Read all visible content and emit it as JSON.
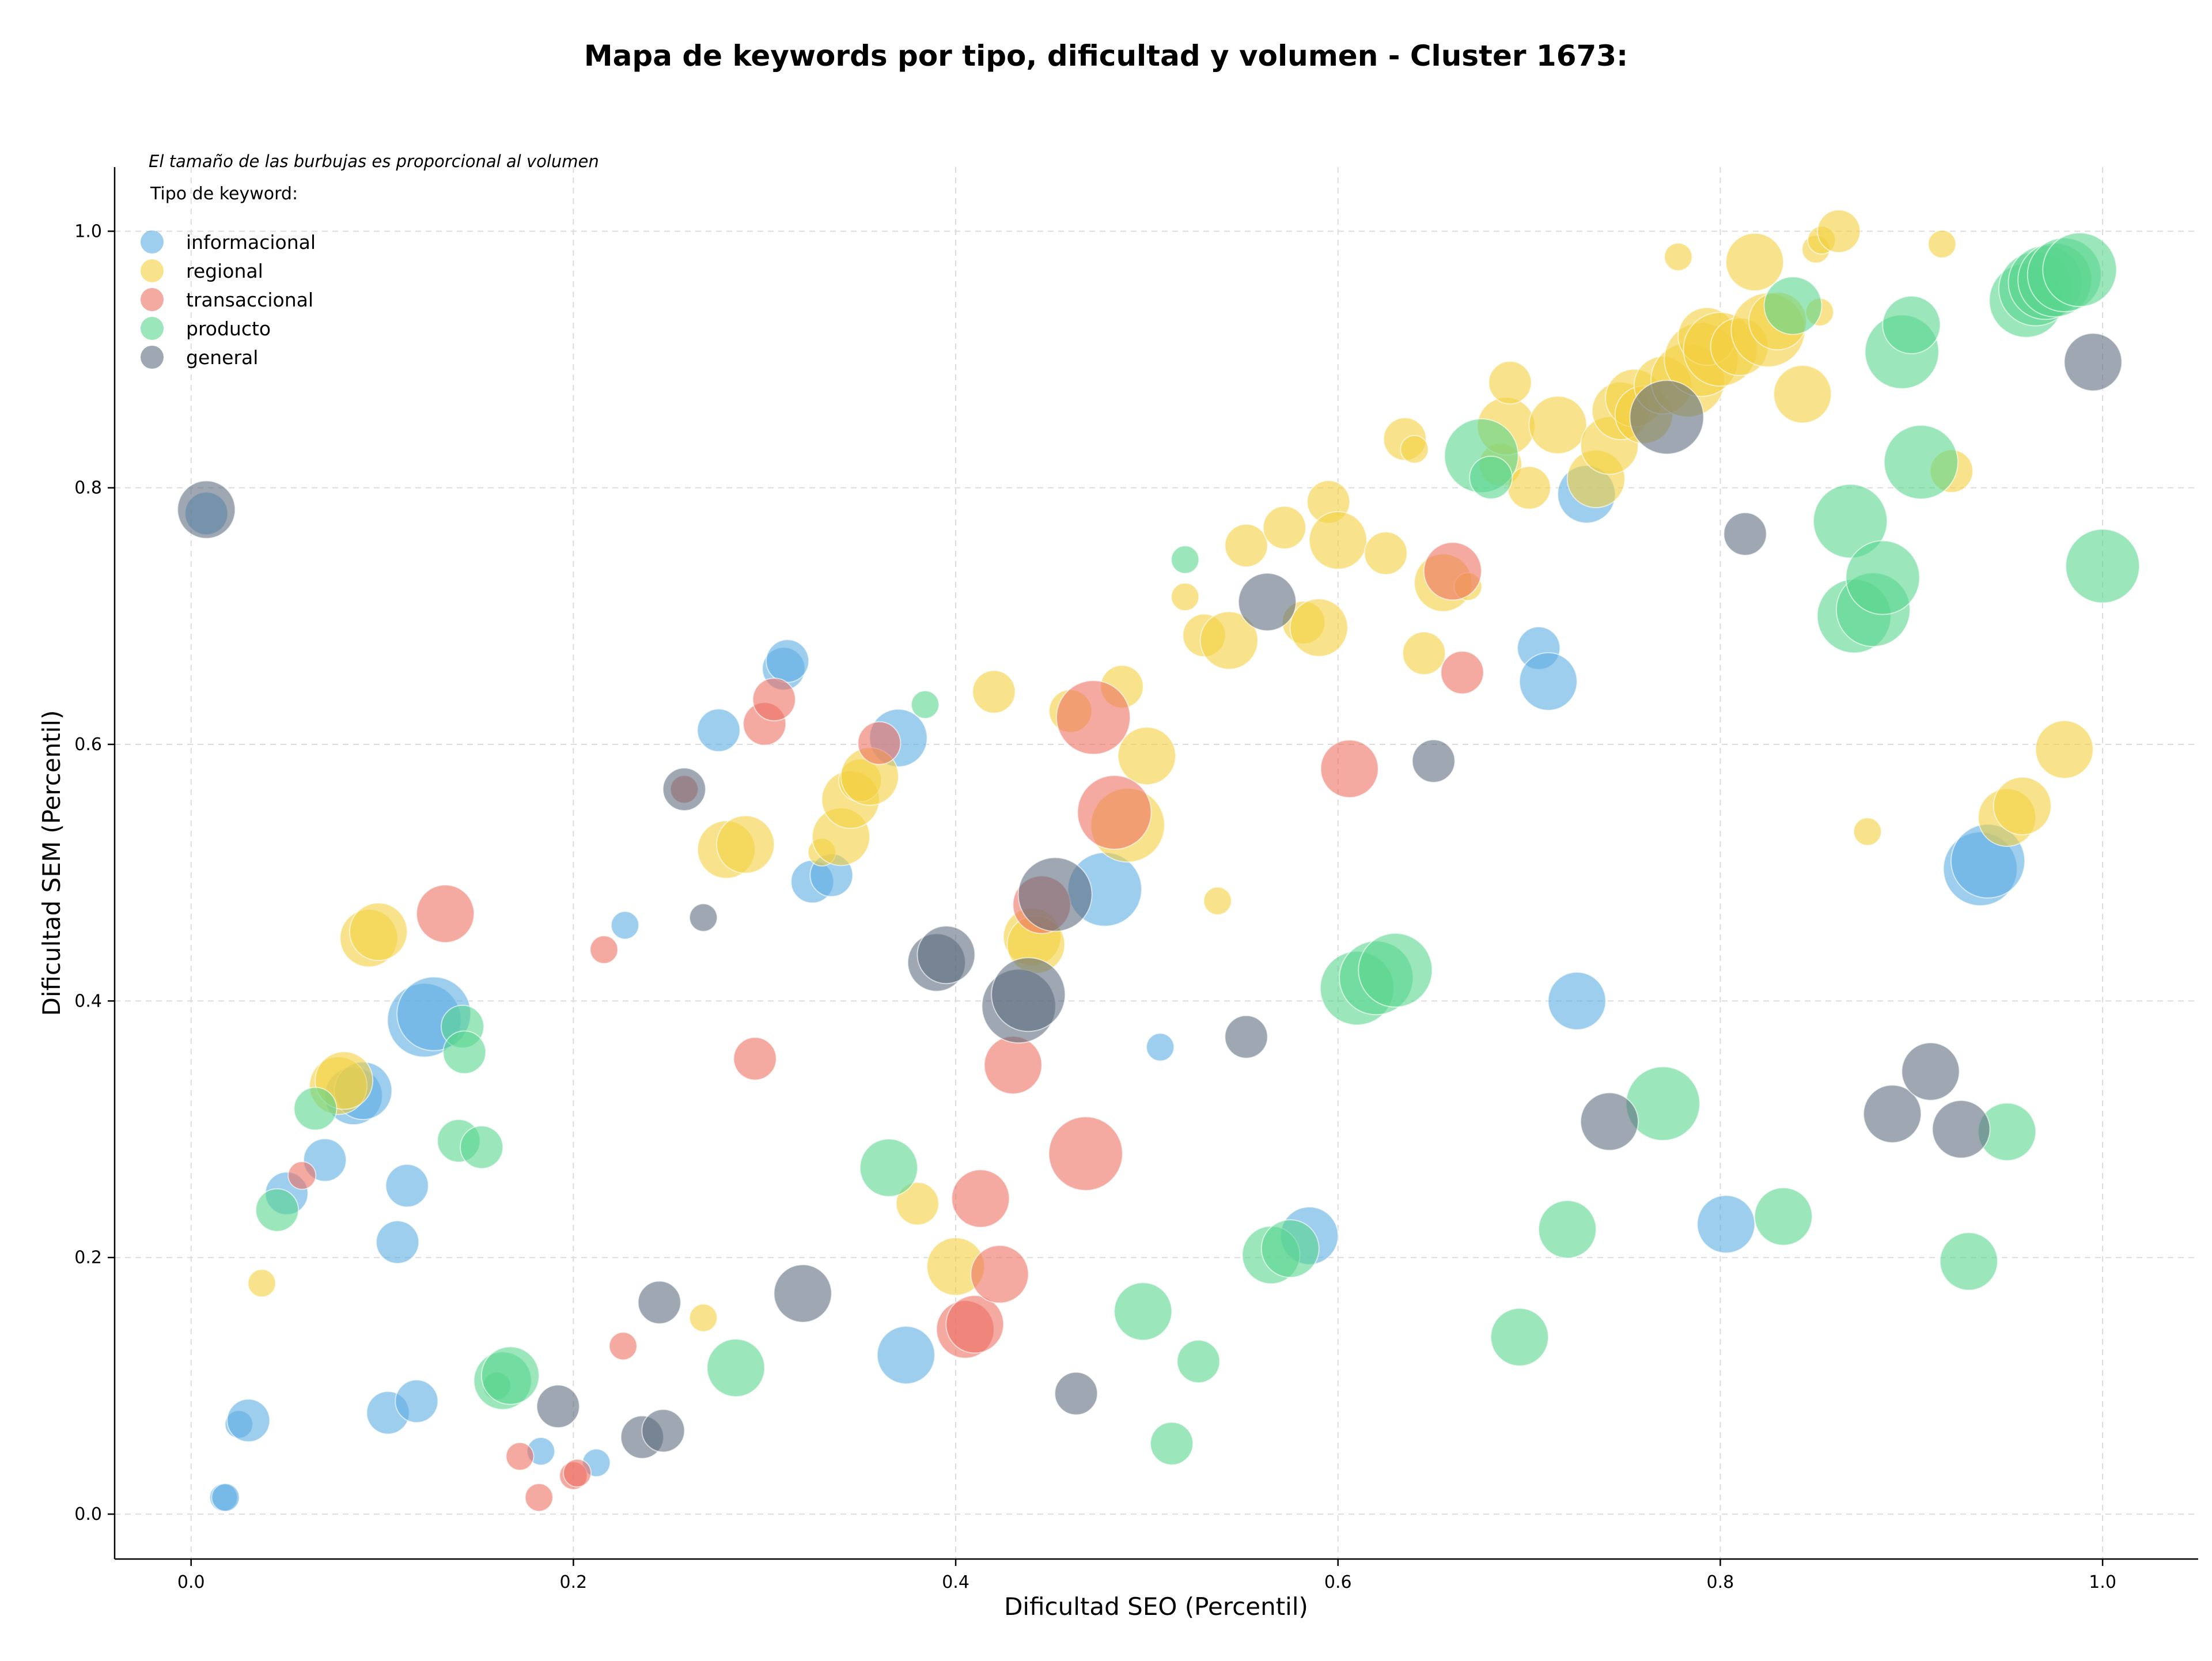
{
  "chart_data": {
    "type": "scatter",
    "title": "Mapa de keywords por tipo, dificultad y volumen - Cluster 1673:",
    "xlabel": "Dificultad SEO (Percentil)",
    "ylabel": "Dificultad SEM (Percentil)",
    "xlim": [
      -0.04,
      1.05
    ],
    "ylim": [
      -0.035,
      1.05
    ],
    "xticks": [
      "0.0",
      "0.2",
      "0.4",
      "0.6",
      "0.8",
      "1.0"
    ],
    "yticks": [
      "0.0",
      "0.2",
      "0.4",
      "0.6",
      "0.8",
      "1.0"
    ],
    "grid": true,
    "legend_title": "Tipo de keyword:",
    "legend_placement": "top-left",
    "note": "El tamaño de las burbujas es proporcional al volumen",
    "series": [
      {
        "name": "informacional",
        "color": "#5dade2",
        "points": [
          {
            "x": 0.008,
            "y": 0.78,
            "size": 2
          },
          {
            "x": 0.017,
            "y": 0.013,
            "size": 1
          },
          {
            "x": 0.018,
            "y": 0.013,
            "size": 1
          },
          {
            "x": 0.025,
            "y": 0.07,
            "size": 1
          },
          {
            "x": 0.03,
            "y": 0.073,
            "size": 2
          },
          {
            "x": 0.05,
            "y": 0.25,
            "size": 2
          },
          {
            "x": 0.07,
            "y": 0.276,
            "size": 2
          },
          {
            "x": 0.085,
            "y": 0.326,
            "size": 3
          },
          {
            "x": 0.09,
            "y": 0.33,
            "size": 3
          },
          {
            "x": 0.103,
            "y": 0.079,
            "size": 2
          },
          {
            "x": 0.108,
            "y": 0.212,
            "size": 2
          },
          {
            "x": 0.113,
            "y": 0.256,
            "size": 2
          },
          {
            "x": 0.118,
            "y": 0.088,
            "size": 2
          },
          {
            "x": 0.122,
            "y": 0.385,
            "size": 4
          },
          {
            "x": 0.127,
            "y": 0.39,
            "size": 4
          },
          {
            "x": 0.183,
            "y": 0.049,
            "size": 1
          },
          {
            "x": 0.212,
            "y": 0.04,
            "size": 1
          },
          {
            "x": 0.227,
            "y": 0.459,
            "size": 1
          },
          {
            "x": 0.276,
            "y": 0.611,
            "size": 2
          },
          {
            "x": 0.31,
            "y": 0.659,
            "size": 2
          },
          {
            "x": 0.312,
            "y": 0.665,
            "size": 2
          },
          {
            "x": 0.325,
            "y": 0.493,
            "size": 2
          },
          {
            "x": 0.335,
            "y": 0.498,
            "size": 2
          },
          {
            "x": 0.37,
            "y": 0.605,
            "size": 3
          },
          {
            "x": 0.374,
            "y": 0.124,
            "size": 3
          },
          {
            "x": 0.478,
            "y": 0.487,
            "size": 4
          },
          {
            "x": 0.507,
            "y": 0.364,
            "size": 1
          },
          {
            "x": 0.585,
            "y": 0.217,
            "size": 3
          },
          {
            "x": 0.705,
            "y": 0.675,
            "size": 2
          },
          {
            "x": 0.71,
            "y": 0.649,
            "size": 3
          },
          {
            "x": 0.725,
            "y": 0.4,
            "size": 3
          },
          {
            "x": 0.73,
            "y": 0.795,
            "size": 3
          },
          {
            "x": 0.803,
            "y": 0.226,
            "size": 3
          },
          {
            "x": 0.936,
            "y": 0.503,
            "size": 4
          },
          {
            "x": 0.94,
            "y": 0.509,
            "size": 4
          }
        ]
      },
      {
        "name": "regional",
        "color": "#f4d03f",
        "points": [
          {
            "x": 0.037,
            "y": 0.18,
            "size": 1
          },
          {
            "x": 0.077,
            "y": 0.334,
            "size": 3
          },
          {
            "x": 0.08,
            "y": 0.338,
            "size": 3
          },
          {
            "x": 0.093,
            "y": 0.449,
            "size": 3
          },
          {
            "x": 0.098,
            "y": 0.454,
            "size": 3
          },
          {
            "x": 0.268,
            "y": 0.153,
            "size": 1
          },
          {
            "x": 0.28,
            "y": 0.518,
            "size": 3
          },
          {
            "x": 0.29,
            "y": 0.522,
            "size": 3
          },
          {
            "x": 0.33,
            "y": 0.516,
            "size": 1
          },
          {
            "x": 0.34,
            "y": 0.528,
            "size": 3
          },
          {
            "x": 0.345,
            "y": 0.557,
            "size": 3
          },
          {
            "x": 0.35,
            "y": 0.572,
            "size": 2
          },
          {
            "x": 0.355,
            "y": 0.575,
            "size": 3
          },
          {
            "x": 0.38,
            "y": 0.242,
            "size": 2
          },
          {
            "x": 0.4,
            "y": 0.193,
            "size": 3
          },
          {
            "x": 0.42,
            "y": 0.641,
            "size": 2
          },
          {
            "x": 0.44,
            "y": 0.45,
            "size": 3
          },
          {
            "x": 0.442,
            "y": 0.444,
            "size": 3
          },
          {
            "x": 0.46,
            "y": 0.626,
            "size": 2
          },
          {
            "x": 0.487,
            "y": 0.645,
            "size": 2
          },
          {
            "x": 0.49,
            "y": 0.537,
            "size": 4
          },
          {
            "x": 0.5,
            "y": 0.591,
            "size": 3
          },
          {
            "x": 0.52,
            "y": 0.715,
            "size": 1
          },
          {
            "x": 0.53,
            "y": 0.685,
            "size": 2
          },
          {
            "x": 0.537,
            "y": 0.478,
            "size": 1
          },
          {
            "x": 0.543,
            "y": 0.681,
            "size": 3
          },
          {
            "x": 0.552,
            "y": 0.755,
            "size": 2
          },
          {
            "x": 0.572,
            "y": 0.769,
            "size": 2
          },
          {
            "x": 0.582,
            "y": 0.695,
            "size": 2
          },
          {
            "x": 0.59,
            "y": 0.691,
            "size": 3
          },
          {
            "x": 0.595,
            "y": 0.789,
            "size": 2
          },
          {
            "x": 0.6,
            "y": 0.759,
            "size": 3
          },
          {
            "x": 0.625,
            "y": 0.749,
            "size": 2
          },
          {
            "x": 0.635,
            "y": 0.838,
            "size": 2
          },
          {
            "x": 0.64,
            "y": 0.83,
            "size": 1
          },
          {
            "x": 0.645,
            "y": 0.671,
            "size": 2
          },
          {
            "x": 0.655,
            "y": 0.726,
            "size": 3
          },
          {
            "x": 0.668,
            "y": 0.723,
            "size": 1
          },
          {
            "x": 0.685,
            "y": 0.818,
            "size": 2
          },
          {
            "x": 0.688,
            "y": 0.848,
            "size": 3
          },
          {
            "x": 0.69,
            "y": 0.882,
            "size": 2
          },
          {
            "x": 0.7,
            "y": 0.8,
            "size": 2
          },
          {
            "x": 0.715,
            "y": 0.849,
            "size": 3
          },
          {
            "x": 0.735,
            "y": 0.807,
            "size": 3
          },
          {
            "x": 0.742,
            "y": 0.833,
            "size": 3
          },
          {
            "x": 0.748,
            "y": 0.86,
            "size": 3
          },
          {
            "x": 0.755,
            "y": 0.87,
            "size": 3
          },
          {
            "x": 0.76,
            "y": 0.857,
            "size": 3
          },
          {
            "x": 0.77,
            "y": 0.88,
            "size": 3
          },
          {
            "x": 0.778,
            "y": 0.98,
            "size": 1
          },
          {
            "x": 0.783,
            "y": 0.884,
            "size": 4
          },
          {
            "x": 0.79,
            "y": 0.9,
            "size": 4
          },
          {
            "x": 0.793,
            "y": 0.918,
            "size": 3
          },
          {
            "x": 0.8,
            "y": 0.908,
            "size": 4
          },
          {
            "x": 0.81,
            "y": 0.91,
            "size": 3
          },
          {
            "x": 0.818,
            "y": 0.976,
            "size": 3
          },
          {
            "x": 0.825,
            "y": 0.923,
            "size": 4
          },
          {
            "x": 0.83,
            "y": 0.93,
            "size": 3
          },
          {
            "x": 0.843,
            "y": 0.873,
            "size": 3
          },
          {
            "x": 0.85,
            "y": 0.986,
            "size": 1
          },
          {
            "x": 0.852,
            "y": 0.937,
            "size": 1
          },
          {
            "x": 0.853,
            "y": 0.993,
            "size": 1
          },
          {
            "x": 0.862,
            "y": 1.0,
            "size": 2
          },
          {
            "x": 0.877,
            "y": 0.532,
            "size": 1
          },
          {
            "x": 0.916,
            "y": 0.99,
            "size": 1
          },
          {
            "x": 0.921,
            "y": 0.813,
            "size": 2
          },
          {
            "x": 0.95,
            "y": 0.543,
            "size": 3
          },
          {
            "x": 0.958,
            "y": 0.552,
            "size": 3
          },
          {
            "x": 0.98,
            "y": 0.596,
            "size": 3
          }
        ]
      },
      {
        "name": "transaccional",
        "color": "#ec7063",
        "points": [
          {
            "x": 0.058,
            "y": 0.264,
            "size": 1
          },
          {
            "x": 0.133,
            "y": 0.468,
            "size": 3
          },
          {
            "x": 0.172,
            "y": 0.045,
            "size": 1
          },
          {
            "x": 0.182,
            "y": 0.013,
            "size": 1
          },
          {
            "x": 0.2,
            "y": 0.03,
            "size": 1
          },
          {
            "x": 0.202,
            "y": 0.032,
            "size": 1
          },
          {
            "x": 0.216,
            "y": 0.44,
            "size": 1
          },
          {
            "x": 0.226,
            "y": 0.131,
            "size": 1
          },
          {
            "x": 0.258,
            "y": 0.565,
            "size": 1
          },
          {
            "x": 0.295,
            "y": 0.355,
            "size": 2
          },
          {
            "x": 0.3,
            "y": 0.616,
            "size": 2
          },
          {
            "x": 0.305,
            "y": 0.635,
            "size": 2
          },
          {
            "x": 0.36,
            "y": 0.601,
            "size": 2
          },
          {
            "x": 0.405,
            "y": 0.144,
            "size": 3
          },
          {
            "x": 0.41,
            "y": 0.148,
            "size": 3
          },
          {
            "x": 0.413,
            "y": 0.246,
            "size": 3
          },
          {
            "x": 0.423,
            "y": 0.187,
            "size": 3
          },
          {
            "x": 0.43,
            "y": 0.35,
            "size": 3
          },
          {
            "x": 0.445,
            "y": 0.475,
            "size": 3
          },
          {
            "x": 0.468,
            "y": 0.281,
            "size": 4
          },
          {
            "x": 0.472,
            "y": 0.621,
            "size": 4
          },
          {
            "x": 0.483,
            "y": 0.547,
            "size": 4
          },
          {
            "x": 0.606,
            "y": 0.581,
            "size": 3
          },
          {
            "x": 0.66,
            "y": 0.735,
            "size": 3
          },
          {
            "x": 0.665,
            "y": 0.656,
            "size": 2
          }
        ]
      },
      {
        "name": "producto",
        "color": "#58d68d",
        "points": [
          {
            "x": 0.045,
            "y": 0.237,
            "size": 2
          },
          {
            "x": 0.065,
            "y": 0.316,
            "size": 2
          },
          {
            "x": 0.14,
            "y": 0.291,
            "size": 2
          },
          {
            "x": 0.142,
            "y": 0.38,
            "size": 2
          },
          {
            "x": 0.143,
            "y": 0.36,
            "size": 2
          },
          {
            "x": 0.152,
            "y": 0.286,
            "size": 2
          },
          {
            "x": 0.16,
            "y": 0.1,
            "size": 1
          },
          {
            "x": 0.163,
            "y": 0.104,
            "size": 3
          },
          {
            "x": 0.167,
            "y": 0.108,
            "size": 3
          },
          {
            "x": 0.285,
            "y": 0.114,
            "size": 3
          },
          {
            "x": 0.365,
            "y": 0.27,
            "size": 3
          },
          {
            "x": 0.384,
            "y": 0.631,
            "size": 1
          },
          {
            "x": 0.498,
            "y": 0.158,
            "size": 3
          },
          {
            "x": 0.513,
            "y": 0.055,
            "size": 2
          },
          {
            "x": 0.52,
            "y": 0.744,
            "size": 1
          },
          {
            "x": 0.527,
            "y": 0.119,
            "size": 2
          },
          {
            "x": 0.565,
            "y": 0.202,
            "size": 3
          },
          {
            "x": 0.575,
            "y": 0.207,
            "size": 3
          },
          {
            "x": 0.61,
            "y": 0.41,
            "size": 4
          },
          {
            "x": 0.62,
            "y": 0.418,
            "size": 4
          },
          {
            "x": 0.63,
            "y": 0.424,
            "size": 4
          },
          {
            "x": 0.675,
            "y": 0.825,
            "size": 4
          },
          {
            "x": 0.68,
            "y": 0.808,
            "size": 2
          },
          {
            "x": 0.695,
            "y": 0.138,
            "size": 3
          },
          {
            "x": 0.72,
            "y": 0.222,
            "size": 3
          },
          {
            "x": 0.77,
            "y": 0.32,
            "size": 4
          },
          {
            "x": 0.833,
            "y": 0.232,
            "size": 3
          },
          {
            "x": 0.838,
            "y": 0.942,
            "size": 3
          },
          {
            "x": 0.868,
            "y": 0.774,
            "size": 4
          },
          {
            "x": 0.87,
            "y": 0.7,
            "size": 4
          },
          {
            "x": 0.88,
            "y": 0.705,
            "size": 4
          },
          {
            "x": 0.885,
            "y": 0.73,
            "size": 4
          },
          {
            "x": 0.895,
            "y": 0.906,
            "size": 4
          },
          {
            "x": 0.9,
            "y": 0.927,
            "size": 3
          },
          {
            "x": 0.905,
            "y": 0.82,
            "size": 4
          },
          {
            "x": 0.93,
            "y": 0.197,
            "size": 3
          },
          {
            "x": 0.95,
            "y": 0.298,
            "size": 3
          },
          {
            "x": 0.96,
            "y": 0.946,
            "size": 4
          },
          {
            "x": 0.965,
            "y": 0.955,
            "size": 4
          },
          {
            "x": 0.97,
            "y": 0.96,
            "size": 4
          },
          {
            "x": 0.975,
            "y": 0.962,
            "size": 4
          },
          {
            "x": 0.98,
            "y": 0.966,
            "size": 4
          },
          {
            "x": 0.988,
            "y": 0.97,
            "size": 4
          },
          {
            "x": 1.0,
            "y": 0.739,
            "size": 4
          }
        ]
      },
      {
        "name": "general",
        "color": "#5d6d7e",
        "points": [
          {
            "x": 0.008,
            "y": 0.783,
            "size": 3
          },
          {
            "x": 0.192,
            "y": 0.084,
            "size": 2
          },
          {
            "x": 0.236,
            "y": 0.06,
            "size": 2
          },
          {
            "x": 0.245,
            "y": 0.165,
            "size": 2
          },
          {
            "x": 0.247,
            "y": 0.065,
            "size": 2
          },
          {
            "x": 0.258,
            "y": 0.565,
            "size": 2
          },
          {
            "x": 0.268,
            "y": 0.465,
            "size": 1
          },
          {
            "x": 0.32,
            "y": 0.172,
            "size": 3
          },
          {
            "x": 0.39,
            "y": 0.43,
            "size": 3
          },
          {
            "x": 0.395,
            "y": 0.436,
            "size": 3
          },
          {
            "x": 0.433,
            "y": 0.396,
            "size": 4
          },
          {
            "x": 0.438,
            "y": 0.405,
            "size": 4
          },
          {
            "x": 0.452,
            "y": 0.483,
            "size": 4
          },
          {
            "x": 0.463,
            "y": 0.094,
            "size": 2
          },
          {
            "x": 0.552,
            "y": 0.372,
            "size": 2
          },
          {
            "x": 0.563,
            "y": 0.711,
            "size": 3
          },
          {
            "x": 0.65,
            "y": 0.587,
            "size": 2
          },
          {
            "x": 0.742,
            "y": 0.306,
            "size": 3
          },
          {
            "x": 0.772,
            "y": 0.855,
            "size": 4
          },
          {
            "x": 0.813,
            "y": 0.764,
            "size": 2
          },
          {
            "x": 0.89,
            "y": 0.312,
            "size": 3
          },
          {
            "x": 0.91,
            "y": 0.345,
            "size": 3
          },
          {
            "x": 0.926,
            "y": 0.3,
            "size": 3
          },
          {
            "x": 0.995,
            "y": 0.898,
            "size": 3
          }
        ]
      }
    ]
  }
}
